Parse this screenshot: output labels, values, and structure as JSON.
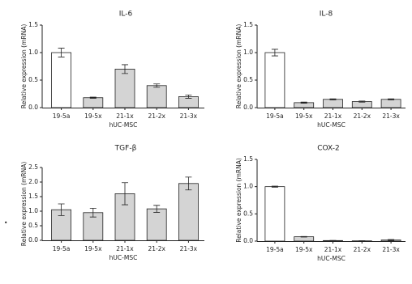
{
  "bullet": "•",
  "chart_data": [
    {
      "type": "bar",
      "title": "IL-6",
      "ylabel": "Relative expression (mRNA)",
      "xlabel": "hUC-MSC",
      "categories": [
        "19-5a",
        "19-5x",
        "21-1x",
        "21-2x",
        "21-3x"
      ],
      "values": [
        1.0,
        0.18,
        0.7,
        0.4,
        0.2
      ],
      "errors": [
        0.08,
        0.01,
        0.08,
        0.03,
        0.03
      ],
      "colors": [
        "#ffffff",
        "#d4d4d4",
        "#d4d4d4",
        "#d4d4d4",
        "#d4d4d4"
      ],
      "ylim": [
        0,
        1.5
      ],
      "yticks": [
        {
          "value": 0,
          "label": "0.0"
        },
        0.5,
        {
          "value": 1,
          "label": "1.0"
        },
        1.5
      ]
    },
    {
      "type": "bar",
      "title": "IL-8",
      "ylabel": "Relative expression (mRNA)",
      "xlabel": "hUC-MSC",
      "categories": [
        "19-5a",
        "19-5x",
        "21-1x",
        "21-2x",
        "21-3x"
      ],
      "values": [
        1.0,
        0.09,
        0.15,
        0.11,
        0.15
      ],
      "errors": [
        0.06,
        0.01,
        0.01,
        0.01,
        0.01
      ],
      "colors": [
        "#ffffff",
        "#d4d4d4",
        "#d4d4d4",
        "#d4d4d4",
        "#d4d4d4"
      ],
      "ylim": [
        0,
        1.5
      ],
      "yticks": [
        {
          "value": 0,
          "label": "0.0"
        },
        0.5,
        {
          "value": 1,
          "label": "1.0"
        },
        1.5
      ]
    },
    {
      "type": "bar",
      "title": "TGF-β",
      "ylabel": "Relative expression (mRNA)",
      "xlabel": "hUC-MSC",
      "categories": [
        "19-5a",
        "19-5x",
        "21-1x",
        "21-2x",
        "21-3x"
      ],
      "values": [
        1.05,
        0.95,
        1.6,
        1.08,
        1.95
      ],
      "errors": [
        0.2,
        0.15,
        0.38,
        0.12,
        0.22
      ],
      "colors": [
        "#d4d4d4",
        "#d4d4d4",
        "#d4d4d4",
        "#d4d4d4",
        "#d4d4d4"
      ],
      "ylim": [
        0,
        2.5
      ],
      "yticks": [
        {
          "value": 0,
          "label": "0.0"
        },
        0.5,
        {
          "value": 1,
          "label": "1.0"
        },
        1.5,
        {
          "value": 2,
          "label": "2.0"
        },
        2.5
      ]
    },
    {
      "type": "bar",
      "title": "COX-2",
      "ylabel": "Relative expression (mRNA)",
      "xlabel": "hUC-MSC",
      "categories": [
        "19-5a",
        "19-5x",
        "21-1x",
        "21-2x",
        "21-3x"
      ],
      "values": [
        1.0,
        0.08,
        0.01,
        0.005,
        0.02
      ],
      "errors": [
        0.01,
        0.005,
        0.002,
        0.002,
        0.01
      ],
      "colors": [
        "#ffffff",
        "#d4d4d4",
        "#d4d4d4",
        "#d4d4d4",
        "#d4d4d4"
      ],
      "ylim": [
        0,
        1.5
      ],
      "yticks": [
        {
          "value": 0,
          "label": "0.0"
        },
        0.5,
        {
          "value": 1,
          "label": "1.0"
        },
        1.5
      ]
    }
  ]
}
